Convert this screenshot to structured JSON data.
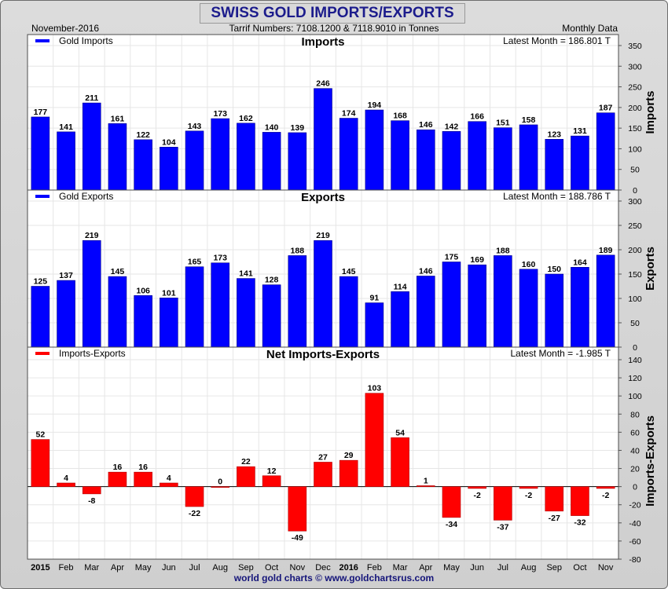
{
  "header": {
    "title": "SWISS GOLD IMPORTS/EXPORTS",
    "date": "November-2016",
    "subtitle": "Tarrif Numbers: 7108.1200 & 7118.9010 in Tonnes",
    "frequency": "Monthly Data"
  },
  "footer": "world gold charts © www.goldchartsrus.com",
  "colors": {
    "imports": "#0000ff",
    "exports": "#0000ff",
    "net": "#ff0000"
  },
  "chart_data": [
    {
      "type": "bar",
      "title": "Imports",
      "legend": "Gold Imports",
      "latest": "Latest Month = 186.801 T",
      "ylabel": "Imports",
      "ylim": [
        0,
        350
      ],
      "yticks": [
        0,
        50,
        100,
        150,
        200,
        250,
        300,
        350
      ],
      "categories": [
        "2015",
        "Feb",
        "Mar",
        "Apr",
        "May",
        "Jun",
        "Jul",
        "Aug",
        "Sep",
        "Oct",
        "Nov",
        "Dec",
        "2016",
        "Feb",
        "Mar",
        "Apr",
        "May",
        "Jun",
        "Jul",
        "Aug",
        "Sep",
        "Oct",
        "Nov"
      ],
      "values": [
        177,
        141,
        211,
        161,
        122,
        104,
        143,
        173,
        162,
        140,
        139,
        246,
        174,
        194,
        168,
        146,
        142,
        166,
        151,
        158,
        123,
        131,
        187
      ]
    },
    {
      "type": "bar",
      "title": "Exports",
      "legend": "Gold Exports",
      "latest": "Latest Month = 188.786 T",
      "ylabel": "Exports",
      "ylim": [
        0,
        300
      ],
      "yticks": [
        0,
        50,
        100,
        150,
        200,
        250,
        300
      ],
      "categories": [
        "2015",
        "Feb",
        "Mar",
        "Apr",
        "May",
        "Jun",
        "Jul",
        "Aug",
        "Sep",
        "Oct",
        "Nov",
        "Dec",
        "2016",
        "Feb",
        "Mar",
        "Apr",
        "May",
        "Jun",
        "Jul",
        "Aug",
        "Sep",
        "Oct",
        "Nov"
      ],
      "values": [
        125,
        137,
        219,
        145,
        106,
        101,
        165,
        173,
        141,
        128,
        188,
        219,
        145,
        91,
        114,
        146,
        175,
        169,
        188,
        160,
        150,
        164,
        189
      ]
    },
    {
      "type": "bar",
      "title": "Net Imports-Exports",
      "legend": "Imports-Exports",
      "latest": "Latest Month = -1.985 T",
      "ylabel": "Imports-Exports",
      "ylim": [
        -80,
        140
      ],
      "yticks": [
        -80,
        -60,
        -40,
        -20,
        0,
        20,
        40,
        60,
        80,
        100,
        120,
        140
      ],
      "categories": [
        "2015",
        "Feb",
        "Mar",
        "Apr",
        "May",
        "Jun",
        "Jul",
        "Aug",
        "Sep",
        "Oct",
        "Nov",
        "Dec",
        "2016",
        "Feb",
        "Mar",
        "Apr",
        "May",
        "Jun",
        "Jul",
        "Aug",
        "Sep",
        "Oct",
        "Nov"
      ],
      "values": [
        52,
        4,
        -8,
        16,
        16,
        4,
        -22,
        0,
        22,
        12,
        -49,
        27,
        29,
        103,
        54,
        1,
        -34,
        -2,
        -37,
        -2,
        -27,
        -32,
        -2
      ]
    }
  ]
}
